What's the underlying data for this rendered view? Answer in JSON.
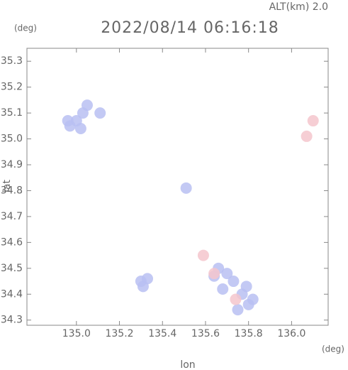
{
  "chart_data": {
    "type": "scatter",
    "title": "2022/08/14 06:16:18",
    "subtitle": "ALT(km) 2.0",
    "y_unit": "(deg)",
    "x_unit": "(deg)",
    "x_label": "lon",
    "y_label": "lat",
    "xlim": [
      134.77,
      136.17
    ],
    "ylim": [
      34.28,
      35.35
    ],
    "xticks": [
      {
        "value": 135,
        "label": "135.0"
      },
      135.2,
      135.4,
      135.6,
      135.8,
      {
        "value": 136,
        "label": "136.0"
      }
    ],
    "yticks": [
      34.3,
      34.4,
      34.5,
      34.6,
      34.7,
      34.8,
      34.9,
      {
        "value": 35,
        "label": "35.0"
      },
      35.1,
      35.2,
      35.3
    ],
    "series": [
      {
        "color": "#b9bff2",
        "x": [
          134.97,
          135.0,
          135.03,
          135.05,
          134.96,
          135.02,
          135.11,
          135.51,
          135.3,
          135.33,
          135.31,
          135.66,
          135.7,
          135.73,
          135.64,
          135.75,
          135.8,
          135.82,
          135.77,
          135.79,
          135.68
        ],
        "y": [
          35.05,
          35.07,
          35.1,
          35.13,
          35.07,
          35.04,
          35.1,
          34.81,
          34.45,
          34.46,
          34.43,
          34.5,
          34.48,
          34.45,
          34.47,
          34.34,
          34.36,
          34.38,
          34.4,
          34.43,
          34.42
        ]
      },
      {
        "color": "#f5c6cc",
        "x": [
          136.07,
          136.1,
          135.59,
          135.64,
          135.74
        ],
        "y": [
          35.01,
          35.07,
          34.55,
          34.48,
          34.38
        ]
      }
    ]
  }
}
